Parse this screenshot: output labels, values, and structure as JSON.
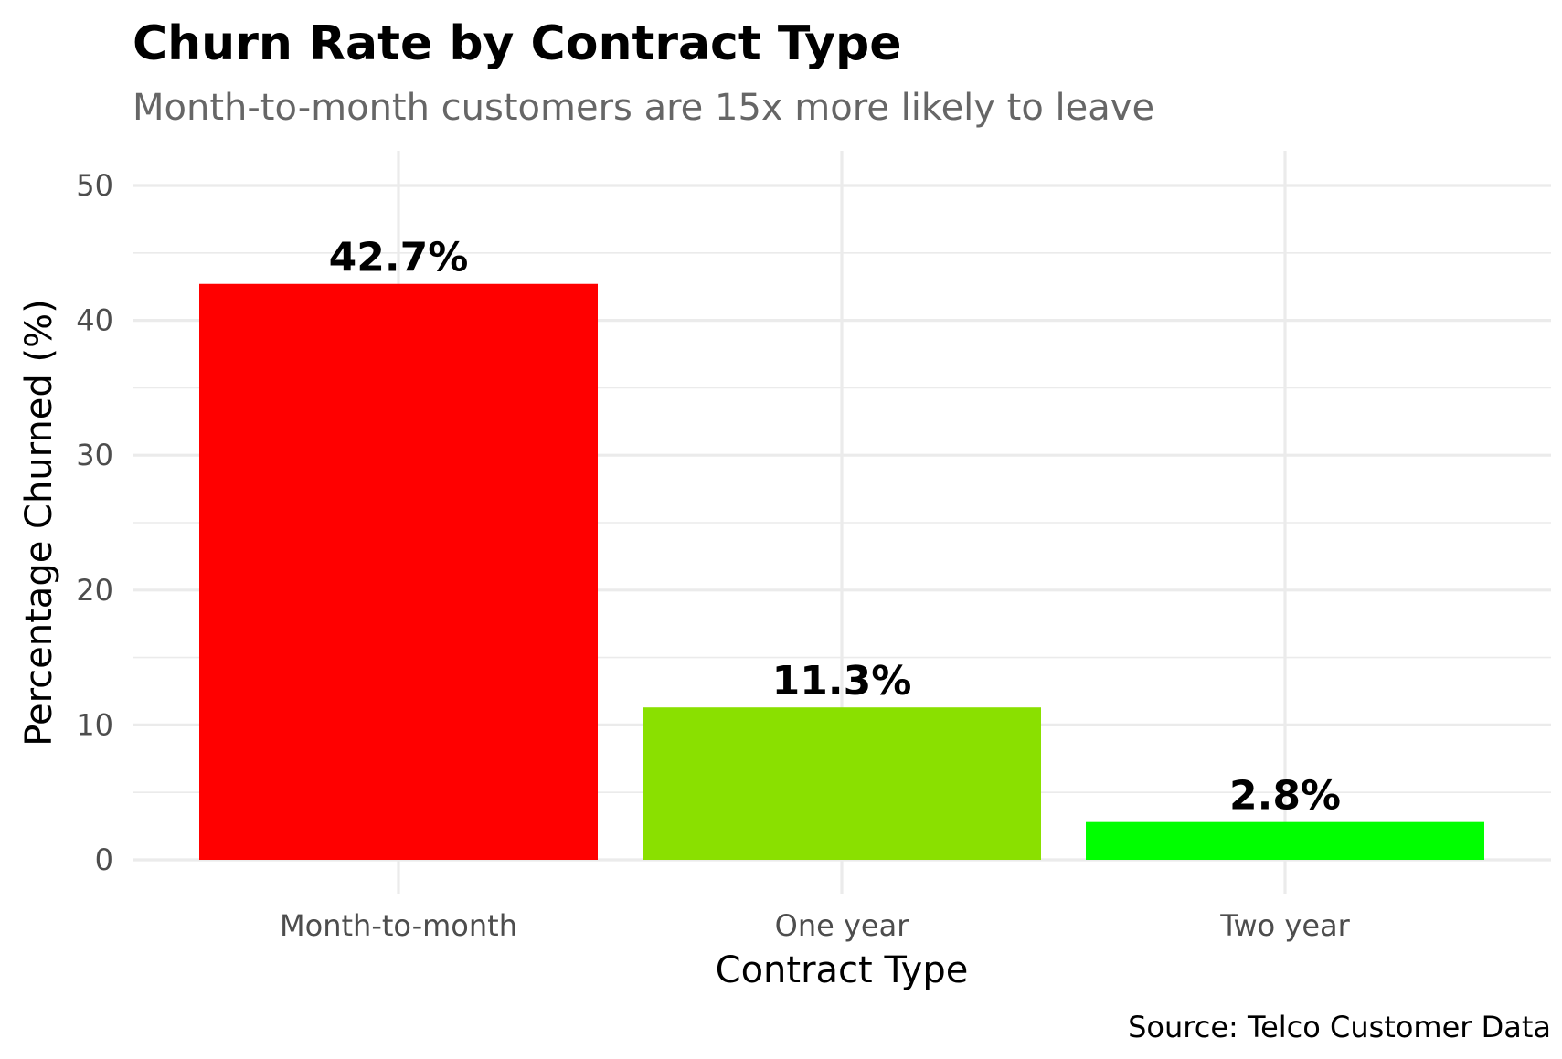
{
  "chart_data": {
    "type": "bar",
    "title": "Churn Rate by Contract Type",
    "subtitle": "Month-to-month customers are 15x more likely to leave",
    "xlabel": "Contract Type",
    "ylabel": "Percentage Churned (%)",
    "caption": "Source: Telco Customer Data",
    "categories": [
      "Month-to-month",
      "One year",
      "Two year"
    ],
    "values": [
      42.7,
      11.3,
      2.8
    ],
    "data_labels": [
      "42.7%",
      "11.3%",
      "2.8%"
    ],
    "colors": [
      "#ff0000",
      "#8ae000",
      "#00ff00"
    ],
    "ylim": [
      0,
      50
    ],
    "yticks": [
      0,
      10,
      20,
      30,
      40,
      50
    ],
    "yminor_ticks": [
      5,
      15,
      25,
      35,
      45
    ],
    "grid": true,
    "legend": "none"
  }
}
